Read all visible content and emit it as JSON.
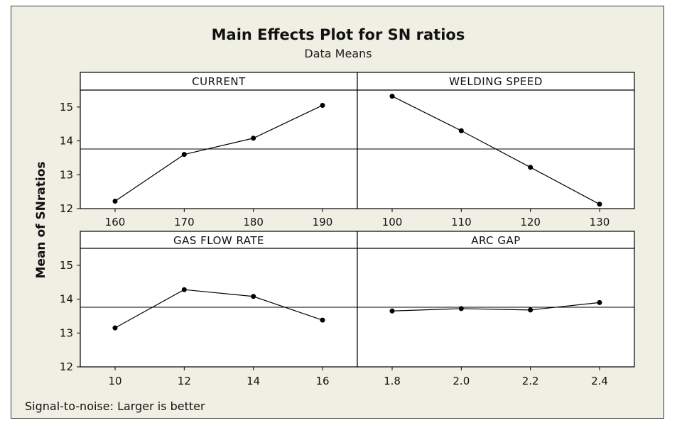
{
  "chart_data": {
    "type": "line",
    "title": "Main Effects Plot for SN ratios",
    "subtitle": "Data Means",
    "ylabel": "Mean of SNratios",
    "footnote": "Signal-to-noise: Larger is better",
    "ylim": [
      12,
      15.5
    ],
    "yticks": [
      12,
      13,
      14,
      15
    ],
    "mean_line": 13.76,
    "panels": [
      {
        "name": "CURRENT",
        "x_labels": [
          "160",
          "170",
          "180",
          "190"
        ],
        "values": [
          12.22,
          13.6,
          14.08,
          15.05
        ]
      },
      {
        "name": "WELDING SPEED",
        "x_labels": [
          "100",
          "110",
          "120",
          "130"
        ],
        "values": [
          15.32,
          14.3,
          13.22,
          12.13
        ]
      },
      {
        "name": "GAS FLOW RATE",
        "x_labels": [
          "10",
          "12",
          "14",
          "16"
        ],
        "values": [
          13.15,
          14.28,
          14.08,
          13.38
        ]
      },
      {
        "name": "ARC GAP",
        "x_labels": [
          "1.8",
          "2.0",
          "2.2",
          "2.4"
        ],
        "values": [
          13.65,
          13.72,
          13.68,
          13.9
        ]
      }
    ]
  },
  "colors": {
    "frame_background": "#f0efe3",
    "plot_background": "#ffffff",
    "line": "#000000"
  }
}
